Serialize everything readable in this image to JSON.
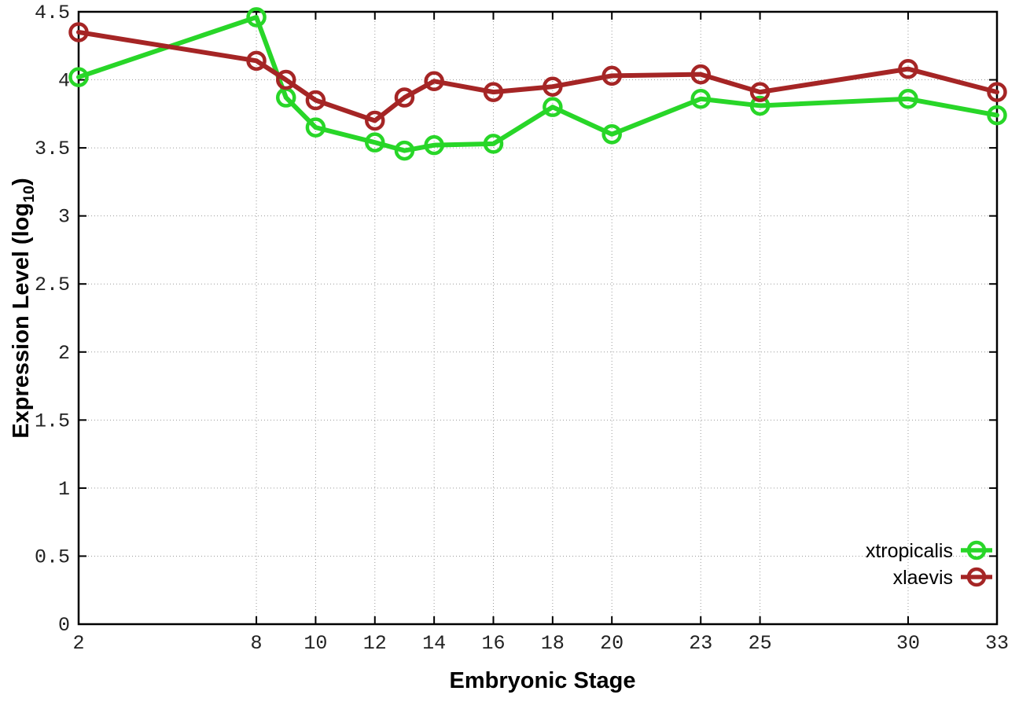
{
  "figure": {
    "background": "#ffffff",
    "xlabel": "Embryonic Stage",
    "ylabel_prefix": "Expression Level (log",
    "ylabel_sub": "10",
    "ylabel_suffix": ")"
  },
  "chart_data": {
    "type": "line",
    "title": "",
    "xlabel": "Embryonic Stage",
    "ylabel": "Expression Level (log10)",
    "xlim": [
      2,
      33
    ],
    "ylim": [
      0,
      4.5
    ],
    "grid": true,
    "grid_color": "#9a9a9a",
    "border_color": "#000000",
    "tick_label_color": "#222222",
    "legend_position": "bottom-right-inside",
    "marker": "open-circle",
    "x": [
      2,
      8,
      9,
      10,
      12,
      13,
      14,
      16,
      18,
      20,
      23,
      25,
      30,
      33
    ],
    "xticks": [
      2,
      8,
      10,
      12,
      14,
      16,
      18,
      20,
      23,
      25,
      30,
      33
    ],
    "xtick_labels": [
      "2",
      "8",
      "10",
      "12",
      "14",
      "16",
      "18",
      "20",
      "23",
      "25",
      "30",
      "33"
    ],
    "ytick_values": [
      0,
      0.5,
      1,
      1.5,
      2,
      2.5,
      3,
      3.5,
      4,
      4.5
    ],
    "ytick_labels": [
      "0",
      "0.5",
      "1",
      "1.5",
      "2",
      "2.5",
      "3",
      "3.5",
      "4",
      "4.5"
    ],
    "series": [
      {
        "name": "xtropicalis",
        "color": "#28d628",
        "marker": "open-circle",
        "values": [
          4.02,
          4.46,
          3.87,
          3.65,
          3.54,
          3.48,
          3.52,
          3.53,
          3.8,
          3.6,
          3.86,
          3.81,
          3.86,
          3.74
        ]
      },
      {
        "name": "xlaevis",
        "color": "#a52525",
        "marker": "open-circle",
        "values": [
          4.35,
          4.14,
          4.0,
          3.85,
          3.7,
          3.87,
          3.99,
          3.91,
          3.95,
          4.03,
          4.04,
          3.91,
          4.08,
          3.91
        ]
      }
    ]
  }
}
